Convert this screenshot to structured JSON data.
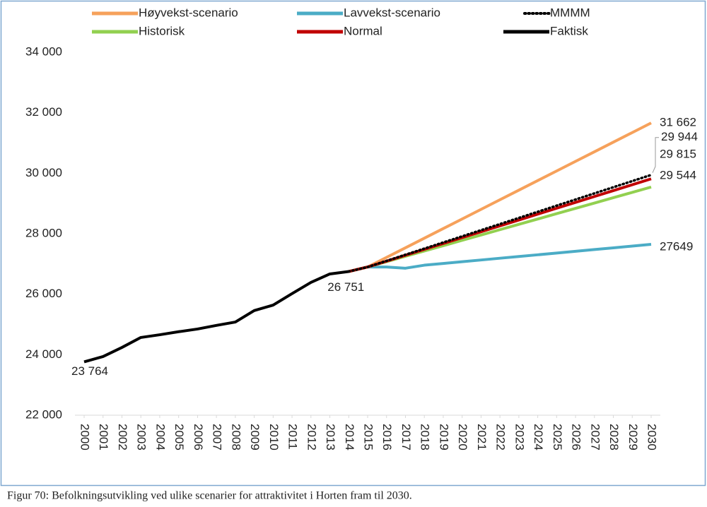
{
  "caption": "Figur 70: Befolkningsutvikling ved ulike scenarier for attraktivitet i Horten fram til 2030.",
  "chart_data": {
    "type": "line",
    "x": [
      2000,
      2001,
      2002,
      2003,
      2004,
      2005,
      2006,
      2007,
      2008,
      2009,
      2010,
      2011,
      2012,
      2013,
      2014,
      2015,
      2016,
      2017,
      2018,
      2019,
      2020,
      2021,
      2022,
      2023,
      2024,
      2025,
      2026,
      2027,
      2028,
      2029,
      2030
    ],
    "xlim": [
      2000,
      2030
    ],
    "ylim": [
      22000,
      34000
    ],
    "yticks": [
      {
        "value": 22000,
        "label": "22 000"
      },
      {
        "value": 24000,
        "label": "24 000"
      },
      {
        "value": 26000,
        "label": "26 000"
      },
      {
        "value": 28000,
        "label": "28 000"
      },
      {
        "value": 30000,
        "label": "30 000"
      },
      {
        "value": 32000,
        "label": "32 000"
      },
      {
        "value": 34000,
        "label": "34 000"
      }
    ],
    "grid": false,
    "series": [
      {
        "name": "Høyvekst-scenario",
        "color": "#f6a15b",
        "style": "solid",
        "values": [
          null,
          null,
          null,
          null,
          null,
          null,
          null,
          null,
          null,
          null,
          null,
          null,
          null,
          null,
          26751,
          26900,
          27218,
          27535,
          27853,
          28170,
          28488,
          28805,
          29123,
          29440,
          29758,
          30075,
          30393,
          30710,
          31028,
          31345,
          31662
        ],
        "value_labels": [
          null,
          null,
          null,
          null,
          null,
          null,
          null,
          null,
          null,
          null,
          null,
          null,
          null,
          null,
          null,
          null,
          null,
          null,
          null,
          null,
          null,
          null,
          null,
          null,
          null,
          null,
          null,
          null,
          null,
          null,
          "31 662"
        ]
      },
      {
        "name": "Lavvekst-scenario",
        "color": "#4bacc6",
        "style": "solid",
        "values": [
          null,
          null,
          null,
          null,
          null,
          null,
          null,
          null,
          null,
          null,
          null,
          null,
          null,
          null,
          26751,
          26900,
          26900,
          26860,
          26960,
          27017,
          27075,
          27132,
          27190,
          27247,
          27304,
          27362,
          27419,
          27477,
          27534,
          27592,
          27649
        ],
        "value_labels": [
          null,
          null,
          null,
          null,
          null,
          null,
          null,
          null,
          null,
          null,
          null,
          null,
          null,
          null,
          null,
          null,
          null,
          null,
          null,
          null,
          null,
          null,
          null,
          null,
          null,
          null,
          null,
          null,
          null,
          null,
          "27649"
        ]
      },
      {
        "name": "MMMM",
        "color": "#000000",
        "style": "dotted",
        "values": [
          null,
          null,
          null,
          null,
          null,
          null,
          null,
          null,
          null,
          null,
          null,
          null,
          null,
          null,
          26751,
          26900,
          27103,
          27306,
          27509,
          27712,
          27915,
          28118,
          28320,
          28523,
          28726,
          28929,
          29132,
          29335,
          29538,
          29741,
          29944
        ],
        "value_labels": [
          null,
          null,
          null,
          null,
          null,
          null,
          null,
          null,
          null,
          null,
          null,
          null,
          null,
          null,
          null,
          null,
          null,
          null,
          null,
          null,
          null,
          null,
          null,
          null,
          null,
          null,
          null,
          null,
          null,
          null,
          "29 944"
        ]
      },
      {
        "name": "Historisk",
        "color": "#92d050",
        "style": "solid",
        "values": [
          null,
          null,
          null,
          null,
          null,
          null,
          null,
          null,
          null,
          null,
          null,
          null,
          null,
          null,
          26751,
          26900,
          27076,
          27253,
          27429,
          27605,
          27781,
          27958,
          28134,
          28310,
          28486,
          28663,
          28839,
          29015,
          29191,
          29368,
          29544
        ],
        "value_labels": [
          null,
          null,
          null,
          null,
          null,
          null,
          null,
          null,
          null,
          null,
          null,
          null,
          null,
          null,
          null,
          null,
          null,
          null,
          null,
          null,
          null,
          null,
          null,
          null,
          null,
          null,
          null,
          null,
          null,
          null,
          "29 544"
        ]
      },
      {
        "name": "Normal",
        "color": "#c00000",
        "style": "solid",
        "values": [
          null,
          null,
          null,
          null,
          null,
          null,
          null,
          null,
          null,
          null,
          null,
          null,
          null,
          null,
          26751,
          26900,
          27094,
          27289,
          27483,
          27677,
          27872,
          28066,
          28260,
          28454,
          28649,
          28843,
          29037,
          29232,
          29426,
          29620,
          29815
        ],
        "value_labels": [
          null,
          null,
          null,
          null,
          null,
          null,
          null,
          null,
          null,
          null,
          null,
          null,
          null,
          null,
          null,
          null,
          null,
          null,
          null,
          null,
          null,
          null,
          null,
          null,
          null,
          null,
          null,
          null,
          null,
          null,
          "29 815"
        ]
      },
      {
        "name": "Faktisk",
        "color": "#000000",
        "style": "solid",
        "values": [
          23764,
          23940,
          24240,
          24570,
          24660,
          24760,
          24850,
          24970,
          25080,
          25460,
          25640,
          26020,
          26390,
          26670,
          26751,
          null,
          null,
          null,
          null,
          null,
          null,
          null,
          null,
          null,
          null,
          null,
          null,
          null,
          null,
          null,
          null
        ],
        "value_labels": [
          "23 764",
          null,
          null,
          null,
          null,
          null,
          null,
          null,
          null,
          null,
          null,
          null,
          null,
          null,
          "26 751",
          null,
          null,
          null,
          null,
          null,
          null,
          null,
          null,
          null,
          null,
          null,
          null,
          null,
          null,
          null,
          null
        ]
      }
    ]
  }
}
